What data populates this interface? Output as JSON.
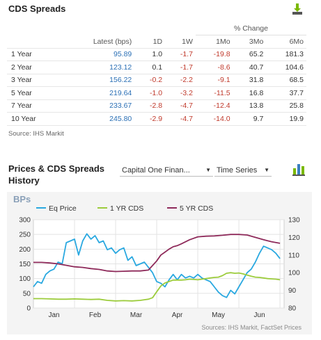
{
  "cds_section": {
    "title": "CDS Spreads",
    "pct_change_label": "% Change",
    "columns": [
      "",
      "Latest (bps)",
      "1D",
      "1W",
      "1Mo",
      "3Mo",
      "6Mo"
    ],
    "rows": [
      {
        "label": "1 Year",
        "latest": "95.89",
        "d1": "1.0",
        "w1": "-1.7",
        "mo1": "-19.8",
        "mo3": "65.2",
        "mo6": "181.3"
      },
      {
        "label": "2 Year",
        "latest": "123.12",
        "d1": "0.1",
        "w1": "-1.7",
        "mo1": "-8.6",
        "mo3": "40.7",
        "mo6": "104.6"
      },
      {
        "label": "3 Year",
        "latest": "156.22",
        "d1": "-0.2",
        "w1": "-2.2",
        "mo1": "-9.1",
        "mo3": "31.8",
        "mo6": "68.5"
      },
      {
        "label": "5 Year",
        "latest": "219.64",
        "d1": "-1.0",
        "w1": "-3.2",
        "mo1": "-11.5",
        "mo3": "16.8",
        "mo6": "37.7"
      },
      {
        "label": "7 Year",
        "latest": "233.67",
        "d1": "-2.8",
        "w1": "-4.7",
        "mo1": "-12.4",
        "mo3": "13.8",
        "mo6": "25.8"
      },
      {
        "label": "10 Year",
        "latest": "245.80",
        "d1": "-2.9",
        "w1": "-4.7",
        "mo1": "-14.0",
        "mo3": "9.7",
        "mo6": "19.9"
      }
    ],
    "source": "Source: IHS Markit"
  },
  "history_section": {
    "title_line1": "Prices & CDS Spreads",
    "title_line2": "History",
    "company_select": "Capital One Finan...",
    "type_select": "Time Series"
  },
  "colors": {
    "eq_price": "#29a8e0",
    "yr1_cds": "#9ccc3c",
    "yr5_cds": "#8e2a5a",
    "latest_blue": "#2a6fb5",
    "negative_red": "#c0392b"
  },
  "chart_data": {
    "type": "line",
    "y_unit_label": "BPs",
    "source": "Sources: IHS Markit, FactSet Prices",
    "x_tick_labels": [
      "Jan",
      "Feb",
      "Mar",
      "Apr",
      "May",
      "Jun"
    ],
    "x_tick_positions": [
      0.5,
      1.5,
      2.5,
      3.5,
      4.5,
      5.5
    ],
    "xlim": [
      0,
      6.1
    ],
    "left_axis": {
      "ticks": [
        0,
        50,
        100,
        150,
        200,
        250,
        300
      ],
      "ylim": [
        0,
        300
      ]
    },
    "right_axis": {
      "ticks": [
        80,
        90,
        100,
        110,
        120,
        130
      ],
      "ylim": [
        80,
        130
      ]
    },
    "legend": [
      "Eq Price",
      "1 YR CDS",
      "5 YR CDS"
    ],
    "grid": true,
    "series": [
      {
        "name": "Eq Price",
        "axis": "right",
        "x": [
          0,
          0.1,
          0.2,
          0.3,
          0.4,
          0.5,
          0.6,
          0.7,
          0.8,
          0.9,
          1.0,
          1.1,
          1.2,
          1.3,
          1.4,
          1.5,
          1.6,
          1.7,
          1.8,
          1.9,
          2.0,
          2.1,
          2.2,
          2.3,
          2.4,
          2.5,
          2.6,
          2.7,
          2.8,
          2.9,
          3.0,
          3.1,
          3.2,
          3.3,
          3.4,
          3.5,
          3.6,
          3.7,
          3.8,
          3.9,
          4.0,
          4.1,
          4.2,
          4.3,
          4.4,
          4.5,
          4.6,
          4.7,
          4.8,
          4.9,
          5.0,
          5.1,
          5.2,
          5.3,
          5.4,
          5.5,
          5.6,
          5.7,
          5.8,
          5.9,
          6.0
        ],
        "values": [
          92,
          95,
          94,
          99,
          101,
          102,
          106,
          105,
          117,
          118,
          119,
          110,
          118,
          122,
          119,
          121,
          117,
          118,
          113,
          114,
          111,
          113,
          114,
          107,
          109,
          104,
          105,
          106,
          103,
          100,
          95,
          94,
          92,
          96,
          99,
          96,
          99,
          97,
          98,
          97,
          99,
          97,
          96,
          95,
          92,
          89,
          87,
          86,
          90,
          88,
          92,
          96,
          100,
          102,
          106,
          111,
          115,
          114,
          113,
          111,
          108
        ]
      },
      {
        "name": "1 YR CDS",
        "axis": "left",
        "x": [
          0,
          0.2,
          0.4,
          0.6,
          0.8,
          1.0,
          1.2,
          1.4,
          1.6,
          1.8,
          2.0,
          2.2,
          2.4,
          2.6,
          2.7,
          2.8,
          2.9,
          3.0,
          3.1,
          3.2,
          3.3,
          3.4,
          3.5,
          3.6,
          3.7,
          3.8,
          3.9,
          4.0,
          4.1,
          4.2,
          4.3,
          4.4,
          4.5,
          4.6,
          4.7,
          4.8,
          4.9,
          5.0,
          5.1,
          5.2,
          5.3,
          5.4,
          5.5,
          5.6,
          5.7,
          5.8,
          5.9,
          6.0
        ],
        "values": [
          32,
          32,
          31,
          30,
          30,
          31,
          30,
          29,
          30,
          26,
          24,
          25,
          24,
          26,
          28,
          30,
          35,
          55,
          75,
          85,
          90,
          95,
          95,
          95,
          96,
          98,
          97,
          96,
          98,
          100,
          102,
          104,
          105,
          110,
          118,
          120,
          118,
          119,
          116,
          112,
          108,
          105,
          104,
          102,
          100,
          99,
          98,
          96
        ]
      },
      {
        "name": "5 YR CDS",
        "axis": "left",
        "x": [
          0,
          0.2,
          0.4,
          0.6,
          0.8,
          1.0,
          1.2,
          1.4,
          1.6,
          1.8,
          2.0,
          2.2,
          2.4,
          2.6,
          2.8,
          3.0,
          3.1,
          3.2,
          3.3,
          3.4,
          3.5,
          3.6,
          3.8,
          4.0,
          4.2,
          4.4,
          4.6,
          4.8,
          5.0,
          5.2,
          5.4,
          5.6,
          5.8,
          6.0
        ],
        "values": [
          155,
          155,
          153,
          150,
          145,
          140,
          138,
          134,
          131,
          126,
          124,
          125,
          126,
          126,
          129,
          160,
          180,
          190,
          200,
          208,
          212,
          218,
          232,
          242,
          244,
          245,
          247,
          250,
          250,
          248,
          240,
          232,
          225,
          220
        ]
      }
    ]
  }
}
